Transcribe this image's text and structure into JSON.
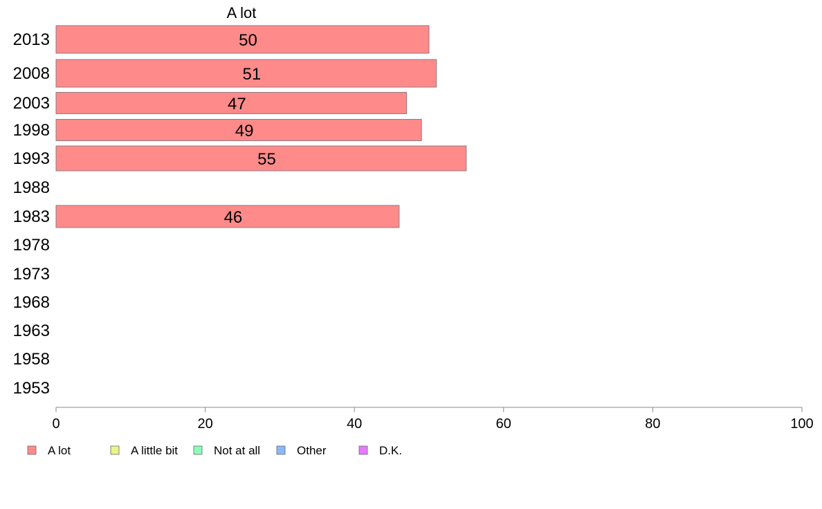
{
  "chart_data": {
    "type": "bar",
    "orientation": "horizontal",
    "title": "A lot",
    "categories": [
      "2013",
      "2008",
      "2003",
      "1998",
      "1993",
      "1988",
      "1983",
      "1978",
      "1973",
      "1968",
      "1963",
      "1958",
      "1953"
    ],
    "series": [
      {
        "name": "A lot",
        "color": "#ff8a8a",
        "values": [
          50,
          51,
          47,
          49,
          55,
          null,
          46,
          null,
          null,
          null,
          null,
          null,
          null
        ]
      }
    ],
    "xlim": [
      0,
      100
    ],
    "xticks": [
      "0",
      "20",
      "40",
      "60",
      "80",
      "100"
    ],
    "grid": false,
    "legend": {
      "placement": "bottom",
      "entries": [
        {
          "label": "A lot",
          "color": "#ff8a8a"
        },
        {
          "label": "A little bit",
          "color": "#e8f58a"
        },
        {
          "label": "Not at all",
          "color": "#8affb8"
        },
        {
          "label": "Other",
          "color": "#8ab8ff"
        },
        {
          "label": "D.K.",
          "color": "#e87aff"
        }
      ]
    }
  }
}
